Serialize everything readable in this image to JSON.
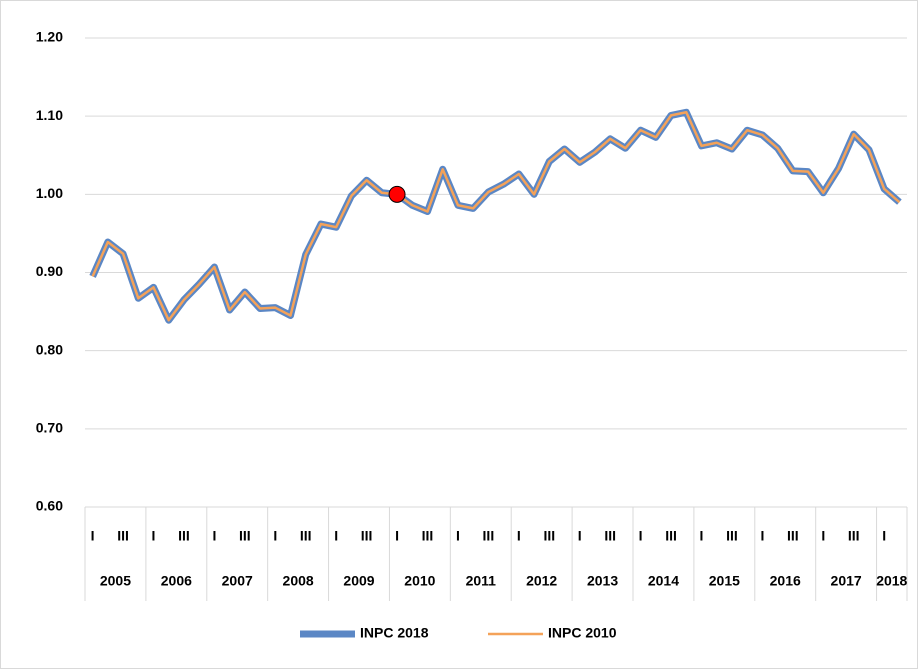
{
  "chart_data": {
    "type": "line",
    "categories": [
      "I",
      null,
      "III",
      null,
      "I",
      null,
      "III",
      null,
      "I",
      null,
      "III",
      null,
      "I",
      null,
      "III",
      null,
      "I",
      null,
      "III",
      null,
      "I",
      null,
      "III",
      null,
      "I",
      null,
      "III",
      null,
      "I",
      null,
      "III",
      null,
      "I",
      null,
      "III",
      null,
      "I",
      null,
      "III",
      null,
      "I",
      null,
      "III",
      null,
      "I",
      null,
      "III",
      null,
      "I",
      null,
      "III",
      null,
      "I",
      null
    ],
    "years": [
      "2005",
      "2006",
      "2007",
      "2008",
      "2009",
      "2010",
      "2011",
      "2012",
      "2013",
      "2014",
      "2015",
      "2016",
      "2017",
      "2018"
    ],
    "series": [
      {
        "name": "INPC 2018",
        "color": "#5b87c5",
        "values": [
          0.895,
          0.939,
          0.924,
          0.867,
          0.881,
          0.839,
          0.865,
          0.885,
          0.907,
          0.852,
          0.875,
          0.854,
          0.855,
          0.845,
          0.923,
          0.962,
          0.958,
          0.998,
          1.018,
          1.002,
          1.0,
          0.986,
          0.978,
          1.032,
          0.986,
          0.982,
          1.003,
          1.013,
          1.026,
          1.0,
          1.042,
          1.058,
          1.041,
          1.054,
          1.071,
          1.059,
          1.082,
          1.073,
          1.101,
          1.105,
          1.062,
          1.066,
          1.058,
          1.082,
          1.076,
          1.059,
          1.03,
          1.029,
          1.002,
          1.033,
          1.077,
          1.057,
          1.007,
          0.99
        ]
      },
      {
        "name": "INPC 2010",
        "color": "#f4a259",
        "values": [
          0.895,
          0.939,
          0.924,
          0.867,
          0.881,
          0.839,
          0.865,
          0.885,
          0.907,
          0.852,
          0.875,
          0.854,
          0.855,
          0.845,
          0.923,
          0.962,
          0.958,
          0.998,
          1.018,
          1.002,
          1.0,
          0.986,
          0.978,
          1.032,
          0.986,
          0.982,
          1.003,
          1.013,
          1.026,
          1.0,
          1.042,
          1.058,
          1.041,
          1.054,
          1.071,
          1.059,
          1.082,
          1.073,
          1.101,
          1.105,
          1.062,
          1.066,
          1.058,
          1.082,
          1.076,
          1.059,
          1.03,
          1.029,
          1.002,
          1.033,
          1.077,
          1.057,
          1.007,
          0.99
        ]
      }
    ],
    "highlight": {
      "series": 1,
      "index": 20,
      "color": "#ff0000"
    },
    "ylim": [
      0.6,
      1.2
    ],
    "yticks": [
      {
        "value": 0.6,
        "label": "0.60"
      },
      {
        "value": 0.7,
        "label": "0.70"
      },
      {
        "value": 0.8,
        "label": "0.80"
      },
      {
        "value": 0.9,
        "label": "0.90"
      },
      {
        "value": 1.0,
        "label": "1.00"
      },
      {
        "value": 1.1,
        "label": "1.10"
      },
      {
        "value": 1.2,
        "label": "1.20"
      }
    ],
    "grid": true,
    "legend": "bottom"
  }
}
